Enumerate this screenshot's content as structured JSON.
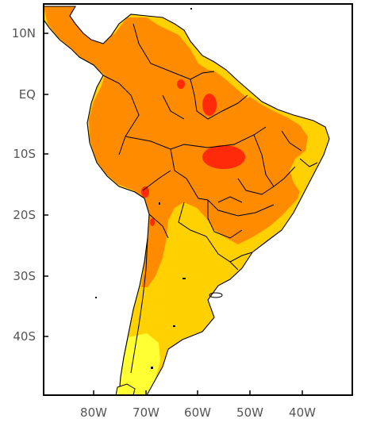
{
  "map": {
    "axes": {
      "lat_labels": [
        "10N",
        "EQ",
        "10S",
        "20S",
        "30S",
        "40S"
      ],
      "lon_labels": [
        "80W",
        "70W",
        "60W",
        "50W",
        "40W"
      ]
    },
    "colors": {
      "ocean": "#ffffff",
      "frame": "#000000",
      "border": "#000000",
      "pale_yellow": "#ffff33",
      "yellow": "#ffd100",
      "orange": "#ff8c00",
      "red": "#ff2a0a"
    }
  }
}
